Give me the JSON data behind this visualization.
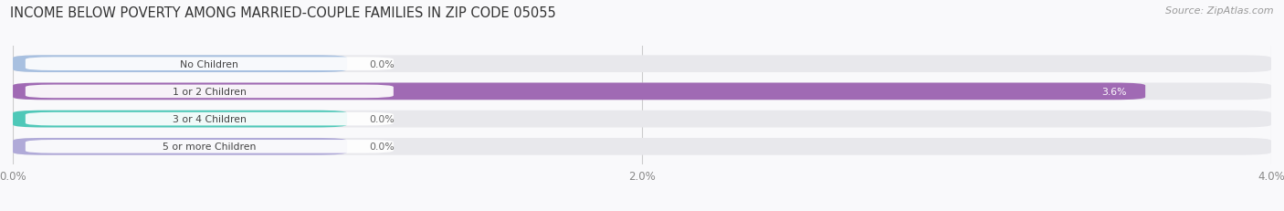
{
  "title": "INCOME BELOW POVERTY AMONG MARRIED-COUPLE FAMILIES IN ZIP CODE 05055",
  "source": "Source: ZipAtlas.com",
  "categories": [
    "No Children",
    "1 or 2 Children",
    "3 or 4 Children",
    "5 or more Children"
  ],
  "values": [
    0.0,
    3.6,
    0.0,
    0.0
  ],
  "bar_colors": [
    "#a8c0e0",
    "#a06ab4",
    "#4ec8b8",
    "#b0aad8"
  ],
  "bar_bg_color": "#e8e8ec",
  "xlim": [
    0,
    4.0
  ],
  "xticks": [
    0.0,
    2.0,
    4.0
  ],
  "xtick_labels": [
    "0.0%",
    "2.0%",
    "4.0%"
  ],
  "title_fontsize": 10.5,
  "source_fontsize": 8,
  "bar_height": 0.62,
  "background_color": "#f9f9fb",
  "fig_width": 14.06,
  "fig_height": 2.32
}
